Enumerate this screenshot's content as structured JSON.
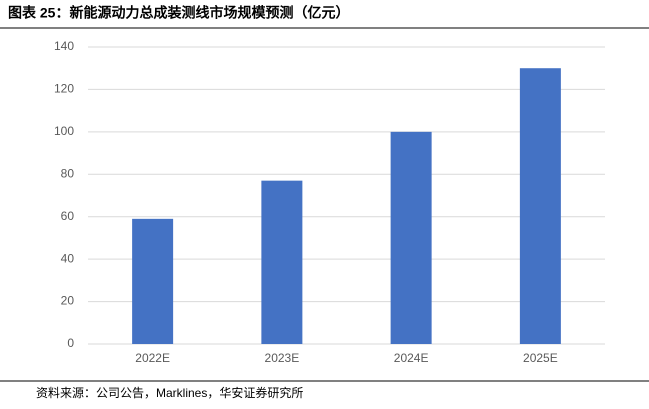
{
  "chart_data": {
    "type": "bar",
    "title": "图表 25：新能源动力总成装测线市场规模预测（亿元）",
    "source": "资料来源：公司公告，Marklines，华安证券研究所",
    "categories": [
      "2022E",
      "2023E",
      "2024E",
      "2025E"
    ],
    "values": [
      59,
      77,
      100,
      130
    ],
    "color": "#4472c4",
    "ylim": [
      0,
      140
    ],
    "yticks": [
      0,
      20,
      40,
      60,
      80,
      100,
      120,
      140
    ],
    "grid": true
  }
}
